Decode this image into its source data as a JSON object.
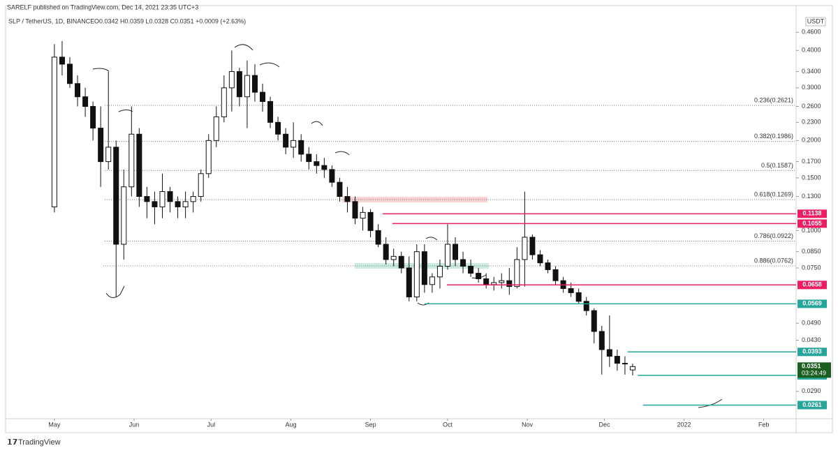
{
  "chart_data": {
    "type": "candlestick",
    "published": "SARELF published on TradingView.com, Dec 14, 2021 23:35 UTC+3",
    "title": "SLP / TetherUS, 1D, BINANCE",
    "subtitle": "O0.0342 H0.0359 L0.0328 C0.0351 +0.0009 (+2.63%)",
    "currency": "USDT",
    "brand": "TradingView",
    "log_scale": true,
    "xlim": [
      -19,
      288.6
    ],
    "ylim": [
      0.0235,
      0.565
    ],
    "xticks": [
      {
        "value": 0,
        "label": "May"
      },
      {
        "value": 31,
        "label": "Jun"
      },
      {
        "value": 61,
        "label": "Jul"
      },
      {
        "value": 92,
        "label": "Aug"
      },
      {
        "value": 123,
        "label": "Sep"
      },
      {
        "value": 153,
        "label": "Oct"
      },
      {
        "value": 184,
        "label": "Nov"
      },
      {
        "value": 214,
        "label": "Dec"
      },
      {
        "value": 245,
        "label": "2022"
      },
      {
        "value": 276,
        "label": "Feb"
      }
    ],
    "yticks": [
      {
        "value": 0.46,
        "label": "0.4600"
      },
      {
        "value": 0.4,
        "label": "0.4000"
      },
      {
        "value": 0.34,
        "label": "0.3400"
      },
      {
        "value": 0.3,
        "label": "0.3000"
      },
      {
        "value": 0.26,
        "label": "0.2600"
      },
      {
        "value": 0.23,
        "label": "0.2300"
      },
      {
        "value": 0.2,
        "label": "0.2000"
      },
      {
        "value": 0.17,
        "label": "0.1700"
      },
      {
        "value": 0.15,
        "label": "0.1500"
      },
      {
        "value": 0.13,
        "label": "0.1300"
      },
      {
        "value": 0.1,
        "label": "0.1000"
      },
      {
        "value": 0.085,
        "label": "0.0850"
      },
      {
        "value": 0.075,
        "label": "0.0750"
      },
      {
        "value": 0.049,
        "label": "0.0490"
      },
      {
        "value": 0.043,
        "label": "0.0430"
      },
      {
        "value": 0.029,
        "label": "0.0290"
      }
    ],
    "x": [
      0,
      3,
      6,
      9,
      12,
      15,
      18,
      21,
      24,
      27,
      30,
      33,
      36,
      39,
      42,
      45,
      48,
      51,
      54,
      57,
      60,
      63,
      66,
      69,
      72,
      75,
      78,
      81,
      84,
      87,
      90,
      93,
      96,
      99,
      102,
      105,
      108,
      111,
      114,
      117,
      120,
      123,
      126,
      129,
      132,
      135,
      138,
      141,
      144,
      147,
      150,
      153,
      156,
      159,
      162,
      165,
      168,
      171,
      174,
      177,
      180,
      183,
      186,
      189,
      192,
      195,
      198,
      201,
      204,
      207,
      210,
      213,
      216,
      219,
      222,
      225
    ],
    "open": [
      0.12,
      0.38,
      0.36,
      0.31,
      0.28,
      0.26,
      0.22,
      0.17,
      0.19,
      0.09,
      0.14,
      0.21,
      0.13,
      0.125,
      0.12,
      0.135,
      0.125,
      0.12,
      0.125,
      0.13,
      0.155,
      0.2,
      0.24,
      0.3,
      0.34,
      0.28,
      0.33,
      0.29,
      0.27,
      0.23,
      0.21,
      0.19,
      0.2,
      0.18,
      0.17,
      0.165,
      0.16,
      0.145,
      0.13,
      0.125,
      0.11,
      0.115,
      0.1,
      0.09,
      0.08,
      0.082,
      0.075,
      0.06,
      0.085,
      0.066,
      0.07,
      0.076,
      0.09,
      0.08,
      0.076,
      0.072,
      0.069,
      0.066,
      0.067,
      0.068,
      0.065,
      0.08,
      0.095,
      0.083,
      0.078,
      0.074,
      0.068,
      0.064,
      0.062,
      0.058,
      0.054,
      0.046,
      0.04,
      0.038,
      0.036,
      0.0342
    ],
    "high": [
      0.42,
      0.43,
      0.38,
      0.33,
      0.3,
      0.27,
      0.26,
      0.34,
      0.2,
      0.16,
      0.26,
      0.22,
      0.14,
      0.135,
      0.155,
      0.14,
      0.13,
      0.135,
      0.135,
      0.16,
      0.21,
      0.26,
      0.33,
      0.4,
      0.35,
      0.37,
      0.36,
      0.31,
      0.28,
      0.24,
      0.22,
      0.23,
      0.21,
      0.19,
      0.18,
      0.175,
      0.165,
      0.15,
      0.14,
      0.13,
      0.12,
      0.118,
      0.105,
      0.095,
      0.087,
      0.085,
      0.082,
      0.09,
      0.09,
      0.072,
      0.08,
      0.105,
      0.095,
      0.085,
      0.08,
      0.075,
      0.072,
      0.07,
      0.072,
      0.075,
      0.088,
      0.135,
      0.097,
      0.086,
      0.08,
      0.076,
      0.07,
      0.067,
      0.064,
      0.06,
      0.055,
      0.048,
      0.052,
      0.04,
      0.038,
      0.0359
    ],
    "low": [
      0.115,
      0.33,
      0.3,
      0.26,
      0.24,
      0.2,
      0.14,
      0.16,
      0.06,
      0.08,
      0.13,
      0.12,
      0.11,
      0.105,
      0.11,
      0.115,
      0.11,
      0.11,
      0.115,
      0.125,
      0.15,
      0.19,
      0.23,
      0.25,
      0.26,
      0.22,
      0.27,
      0.25,
      0.22,
      0.2,
      0.18,
      0.175,
      0.17,
      0.16,
      0.155,
      0.15,
      0.14,
      0.125,
      0.115,
      0.105,
      0.1,
      0.095,
      0.088,
      0.077,
      0.076,
      0.072,
      0.058,
      0.058,
      0.062,
      0.062,
      0.064,
      0.074,
      0.076,
      0.072,
      0.07,
      0.067,
      0.064,
      0.063,
      0.064,
      0.061,
      0.064,
      0.065,
      0.08,
      0.076,
      0.072,
      0.066,
      0.062,
      0.06,
      0.057,
      0.052,
      0.042,
      0.033,
      0.035,
      0.034,
      0.033,
      0.0328
    ],
    "close": [
      0.38,
      0.36,
      0.31,
      0.28,
      0.26,
      0.22,
      0.17,
      0.19,
      0.09,
      0.14,
      0.21,
      0.13,
      0.125,
      0.12,
      0.135,
      0.125,
      0.12,
      0.125,
      0.13,
      0.155,
      0.2,
      0.24,
      0.3,
      0.34,
      0.28,
      0.33,
      0.29,
      0.27,
      0.23,
      0.21,
      0.19,
      0.2,
      0.18,
      0.17,
      0.165,
      0.16,
      0.145,
      0.13,
      0.125,
      0.11,
      0.115,
      0.1,
      0.09,
      0.08,
      0.082,
      0.075,
      0.06,
      0.085,
      0.066,
      0.07,
      0.076,
      0.09,
      0.08,
      0.076,
      0.072,
      0.069,
      0.066,
      0.067,
      0.068,
      0.065,
      0.08,
      0.095,
      0.083,
      0.078,
      0.074,
      0.068,
      0.064,
      0.062,
      0.058,
      0.054,
      0.046,
      0.04,
      0.038,
      0.036,
      0.036,
      0.0351
    ],
    "fib_levels": [
      {
        "label": "0.236(0.2621)",
        "value": 0.2621,
        "start": 19.6
      },
      {
        "label": "0.382(0.1986)",
        "value": 0.1986,
        "start": 19.6
      },
      {
        "label": "0.5(0.1587)",
        "value": 0.1587,
        "start": 19.6
      },
      {
        "label": "0.618(0.1269)",
        "value": 0.1269,
        "start": 19.6
      },
      {
        "label": "0.786(0.0922)",
        "value": 0.0922,
        "start": 19.6
      },
      {
        "label": "0.886(0.0762)",
        "value": 0.0762,
        "start": 19
      }
    ],
    "price_lines": [
      {
        "value": 0.1138,
        "start": 127.7,
        "color": "#e91e63"
      },
      {
        "value": 0.1055,
        "start": 131.5,
        "color": "#e91e63"
      },
      {
        "value": 0.0658,
        "start": 152.7,
        "color": "#e91e63"
      },
      {
        "value": 0.0569,
        "start": 144,
        "color": "#26a69a"
      },
      {
        "value": 0.0393,
        "start": 223,
        "color": "#26a69a"
      },
      {
        "value": 0.0328,
        "start": 227,
        "color": "#26a69a"
      },
      {
        "value": 0.0261,
        "start": 229,
        "color": "#26a69a"
      }
    ],
    "zones": [
      {
        "value": 0.1269,
        "start": 112,
        "end": 168.5,
        "color": "#f8c8c8"
      },
      {
        "value": 0.0762,
        "start": 116.8,
        "end": 169,
        "color": "#bfe6dc"
      }
    ],
    "last_price": {
      "value": 0.0351,
      "countdown": "03:24:49",
      "color": "#1b5e20"
    }
  }
}
